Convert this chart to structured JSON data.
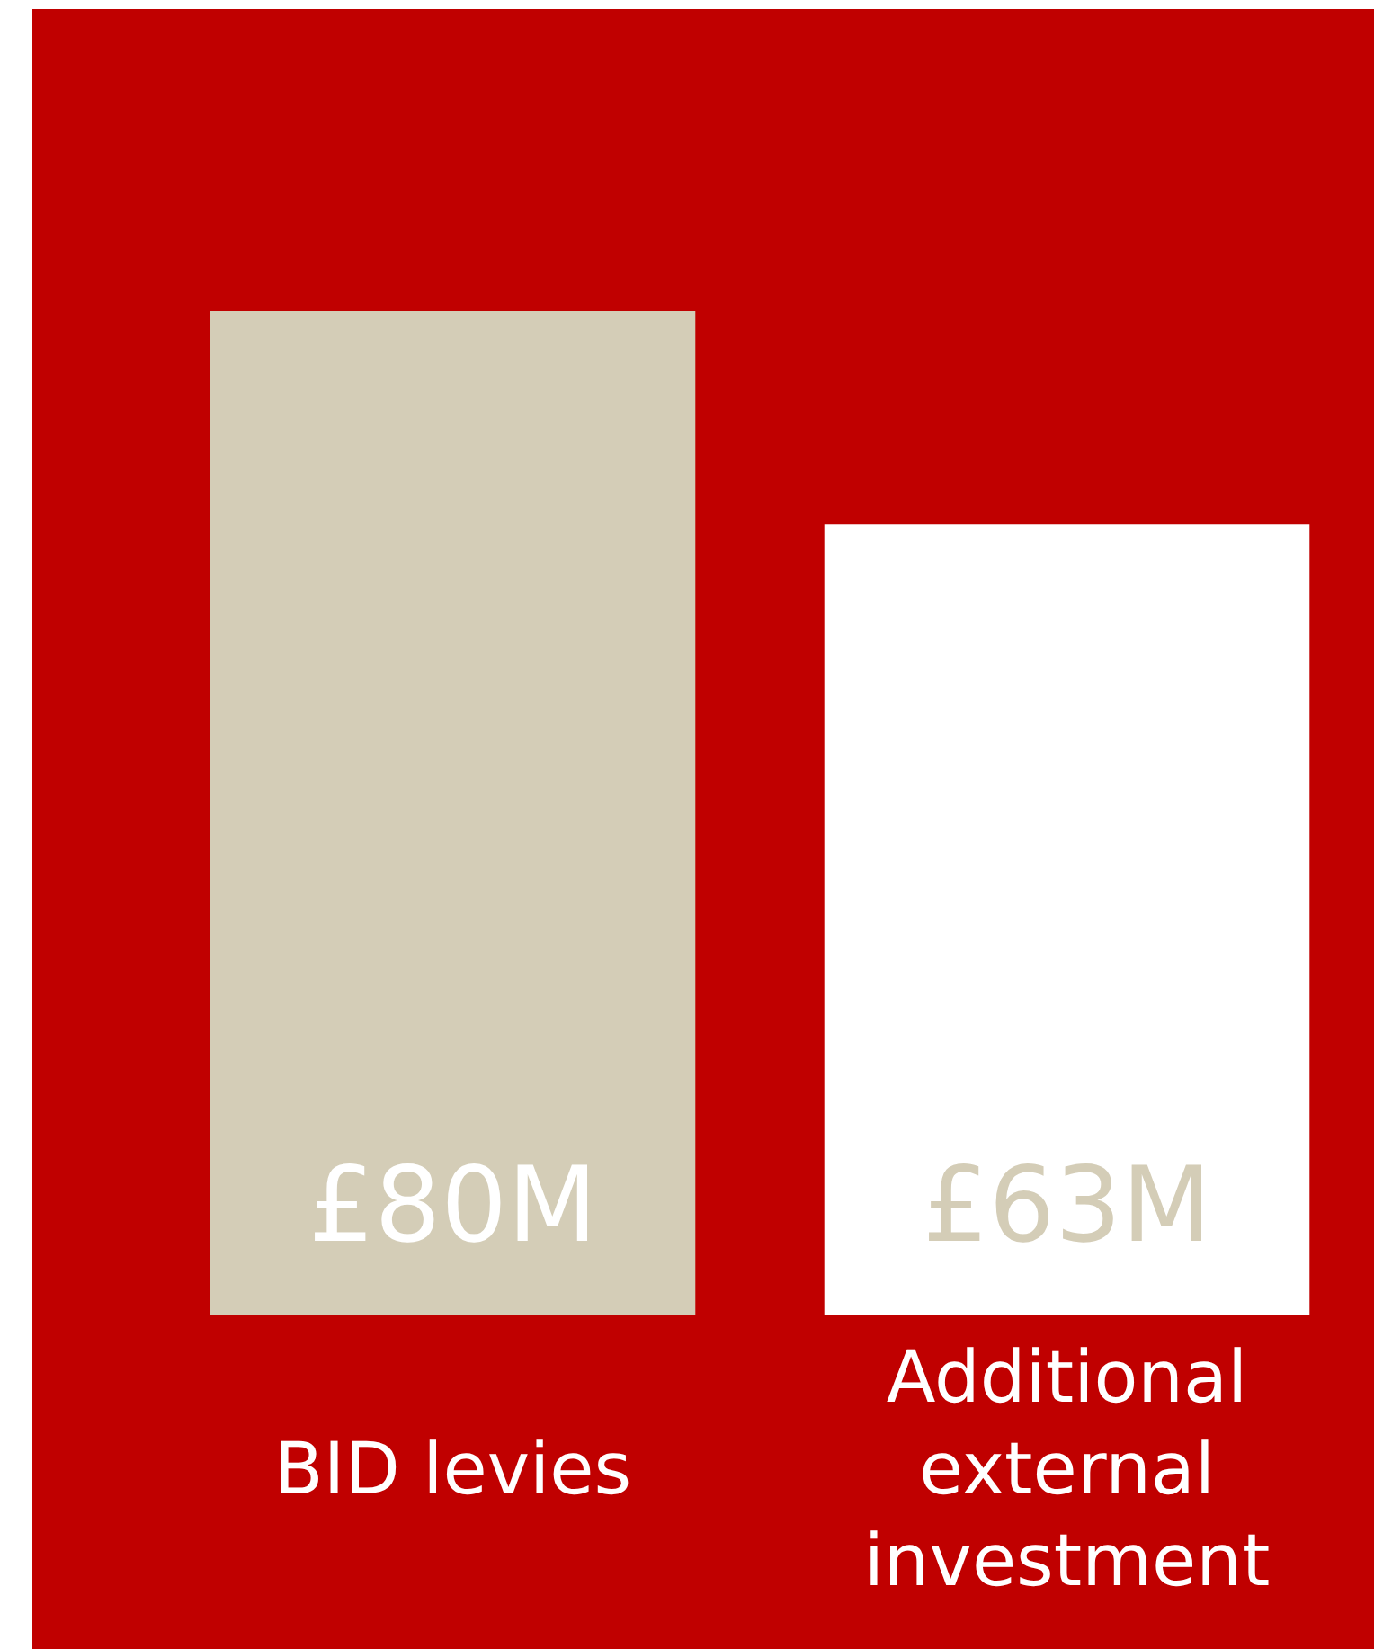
{
  "chart_data": {
    "type": "bar",
    "categories": [
      "BID levies",
      "Additional external investment"
    ],
    "values": [
      80,
      63
    ],
    "colors": [
      "#d4cdb7",
      "#ffffff"
    ],
    "value_labels": [
      "£80M",
      "£63M"
    ]
  }
}
